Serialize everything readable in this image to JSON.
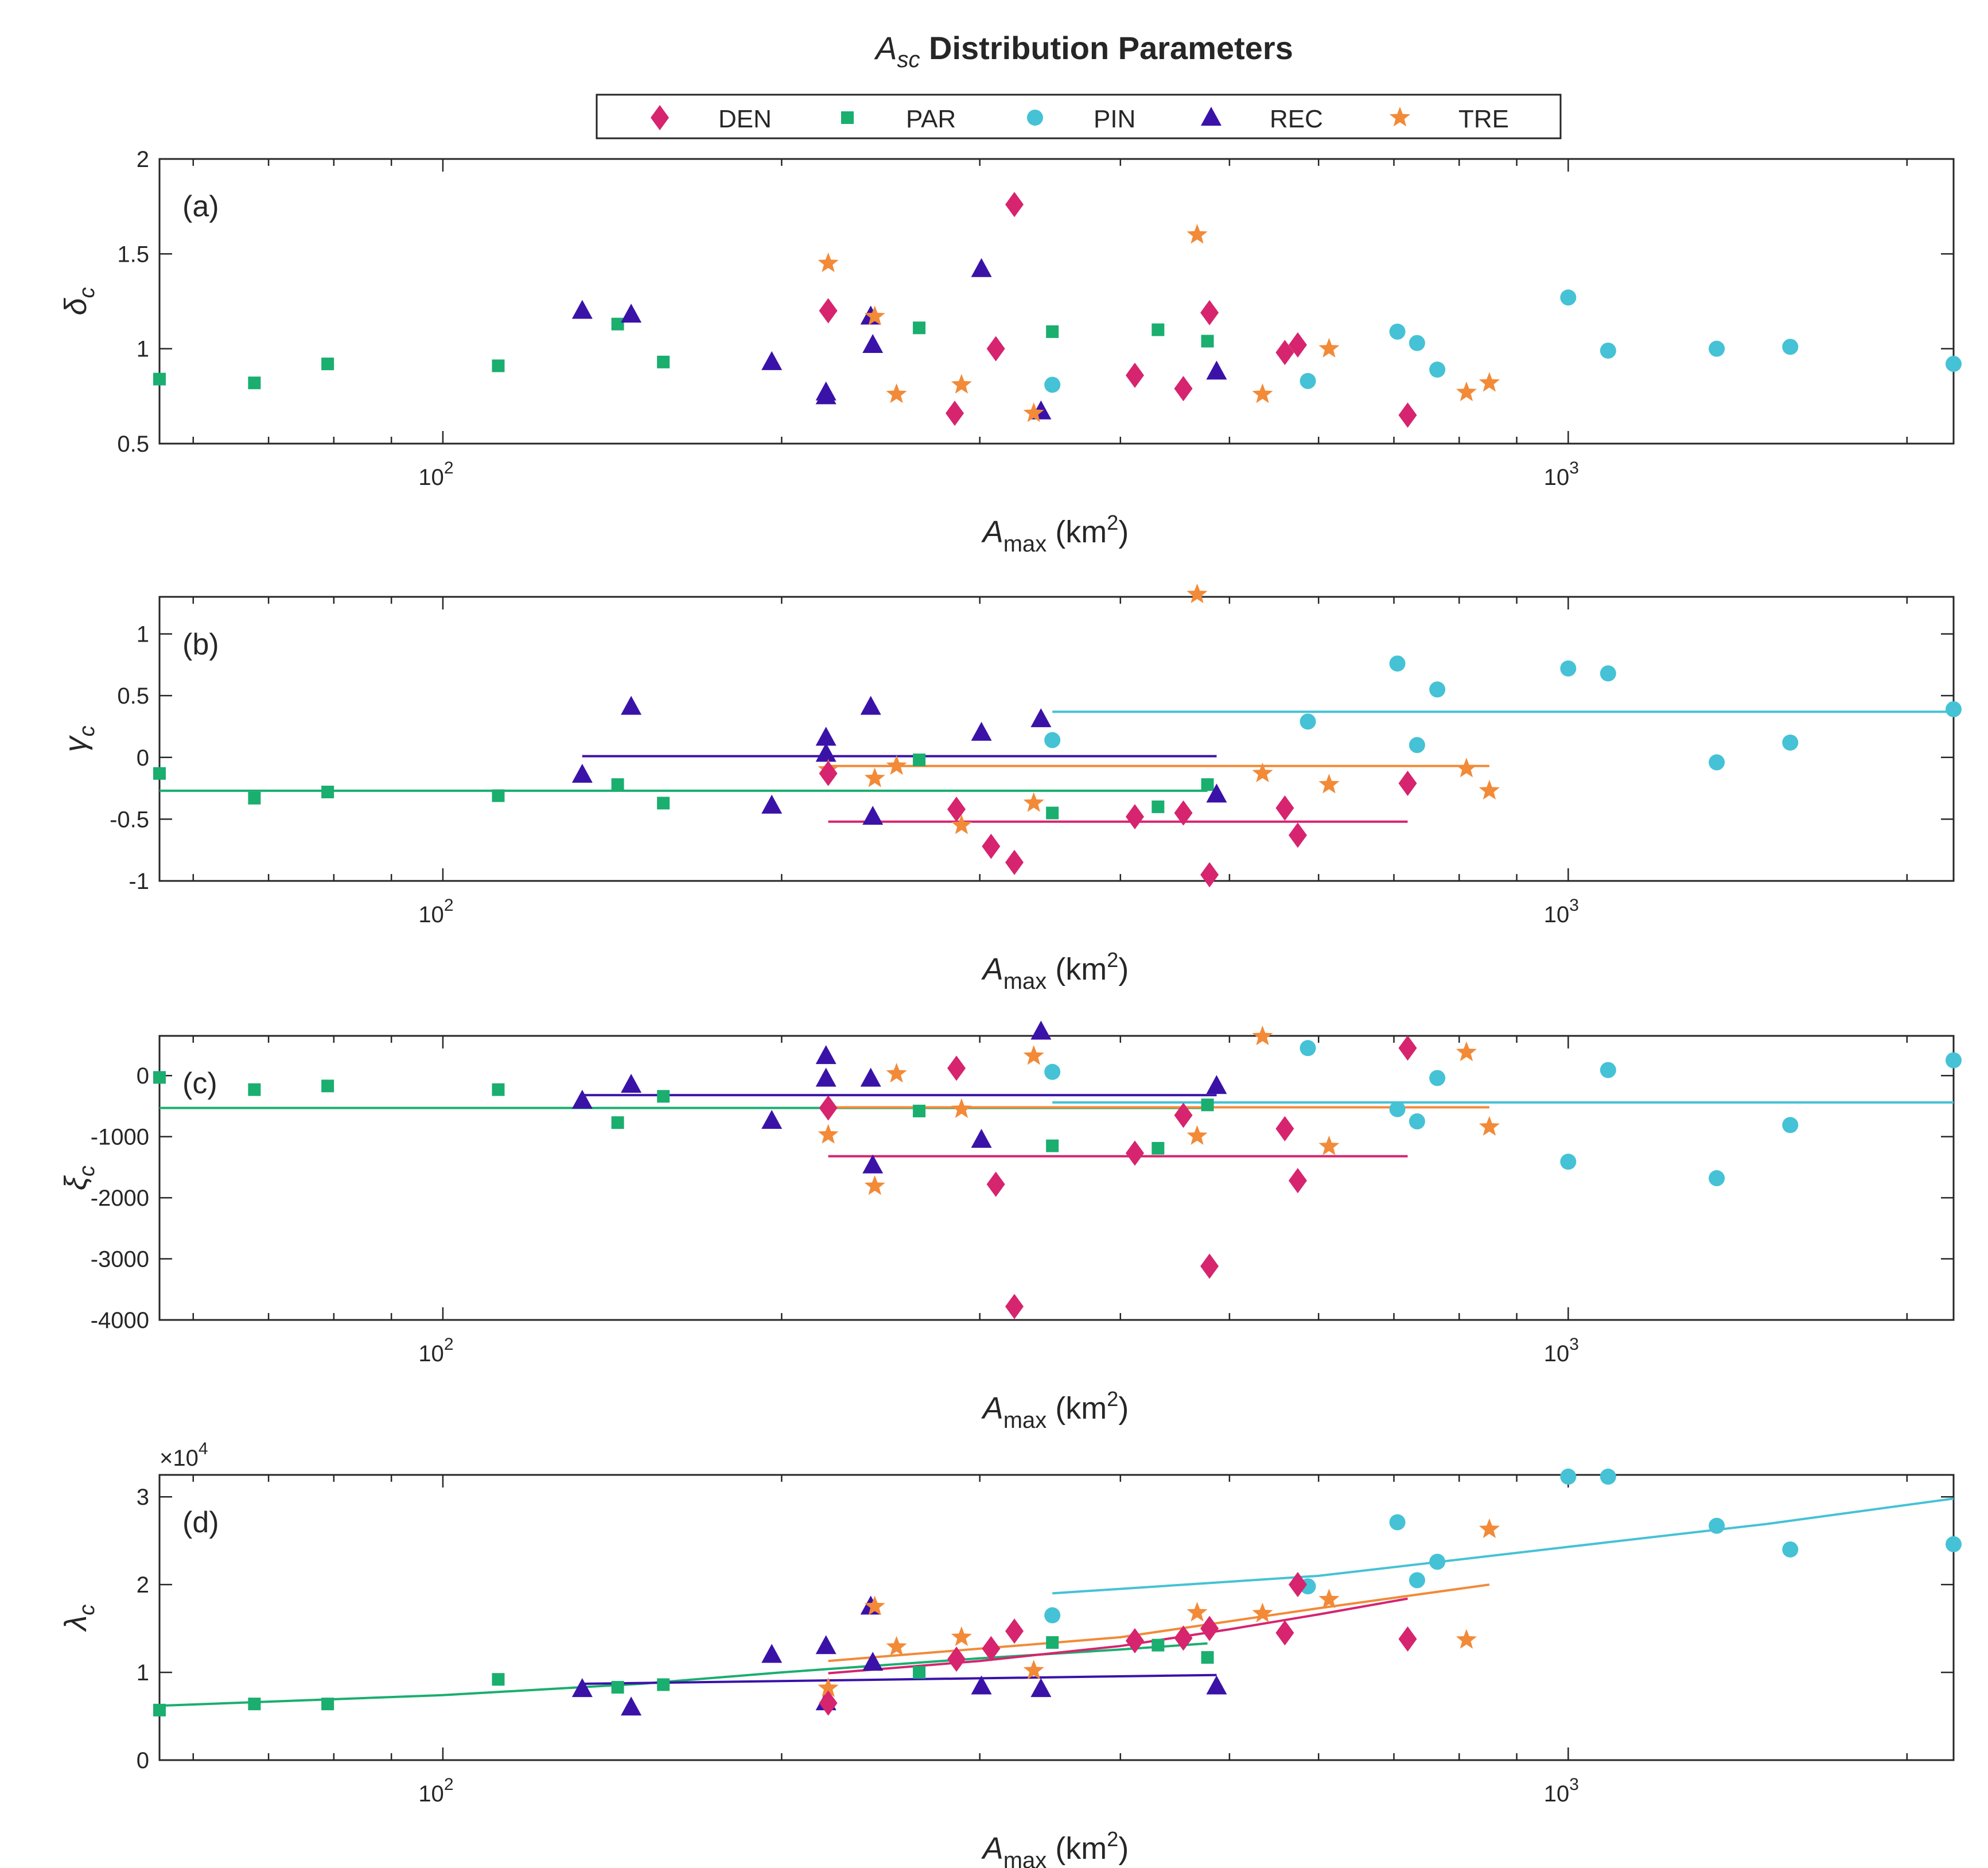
{
  "figure": {
    "title_base": "A",
    "title_sub": "sc",
    "title_rest": " Distribution Parameters",
    "x_label": {
      "base": "A",
      "sub": "max",
      "unit_pre": " (km",
      "unit_sup": "2",
      "unit_post": ")"
    },
    "x_tick_base": "10",
    "x_tick_exponents": [
      "2",
      "3"
    ],
    "x_tick_values": [
      100,
      1000
    ],
    "xlim": [
      56,
      2200
    ]
  },
  "legend": [
    {
      "key": "DEN",
      "label": "DEN",
      "marker": "diamond",
      "color": "#D6246F"
    },
    {
      "key": "PAR",
      "label": "PAR",
      "marker": "square",
      "color": "#1AAE6F"
    },
    {
      "key": "PIN",
      "label": "PIN",
      "marker": "circle",
      "color": "#45C2D5"
    },
    {
      "key": "REC",
      "label": "REC",
      "marker": "triangle",
      "color": "#3A12A8"
    },
    {
      "key": "TRE",
      "label": "TRE",
      "marker": "star",
      "color": "#F28A38"
    }
  ],
  "chart_data": [
    {
      "id": "a",
      "type": "scatter",
      "panel_label": "(a)",
      "ylabel": {
        "symbol": "δ",
        "sub": "c"
      },
      "ylim": [
        0.5,
        2
      ],
      "yticks": [
        0.5,
        1,
        1.5,
        2
      ],
      "ytick_labels": [
        "0.5",
        "1",
        "1.5",
        "2"
      ],
      "scale_note": "",
      "series": {
        "DEN": [
          [
            220,
            1.2
          ],
          [
            310,
            1.0
          ],
          [
            322,
            1.76
          ],
          [
            285,
            0.66
          ],
          [
            412,
            0.86
          ],
          [
            455,
            0.79
          ],
          [
            480,
            1.19
          ],
          [
            560,
            0.98
          ],
          [
            575,
            1.02
          ],
          [
            720,
            0.65
          ]
        ],
        "PAR": [
          [
            56,
            0.84
          ],
          [
            68,
            0.82
          ],
          [
            79,
            0.92
          ],
          [
            112,
            0.91
          ],
          [
            143,
            1.13
          ],
          [
            157,
            0.93
          ],
          [
            265,
            1.11
          ],
          [
            348,
            1.09
          ],
          [
            432,
            1.1
          ],
          [
            478,
            1.04
          ]
        ],
        "PIN": [
          [
            348,
            0.81
          ],
          [
            587,
            0.83
          ],
          [
            705,
            1.09
          ],
          [
            734,
            1.03
          ],
          [
            765,
            0.89
          ],
          [
            1000,
            1.27
          ],
          [
            1085,
            0.99
          ],
          [
            1355,
            1.0
          ],
          [
            1575,
            1.01
          ],
          [
            2200,
            0.92
          ]
        ],
        "REC": [
          [
            133,
            1.2
          ],
          [
            147,
            1.18
          ],
          [
            196,
            0.93
          ],
          [
            219,
            0.75
          ],
          [
            219,
            0.77
          ],
          [
            240,
            1.17
          ],
          [
            241,
            1.02
          ],
          [
            301,
            1.42
          ],
          [
            340,
            0.67
          ],
          [
            487,
            0.88
          ]
        ],
        "TRE": [
          [
            220,
            1.45
          ],
          [
            242,
            1.17
          ],
          [
            253,
            0.76
          ],
          [
            289,
            0.81
          ],
          [
            335,
            0.66
          ],
          [
            468,
            1.6
          ],
          [
            535,
            0.76
          ],
          [
            613,
            1.0
          ],
          [
            812,
            0.77
          ],
          [
            851,
            0.82
          ]
        ]
      },
      "fits": {}
    },
    {
      "id": "b",
      "type": "scatter",
      "panel_label": "(b)",
      "ylabel": {
        "symbol": "γ",
        "sub": "c"
      },
      "ylim": [
        -1,
        1.3
      ],
      "yticks": [
        -1,
        -0.5,
        0,
        0.5,
        1
      ],
      "ytick_labels": [
        "-1",
        "-0.5",
        "0",
        "0.5",
        "1"
      ],
      "scale_note": "",
      "series": {
        "DEN": [
          [
            220,
            -0.13
          ],
          [
            286,
            -0.42
          ],
          [
            307,
            -0.72
          ],
          [
            322,
            -0.85
          ],
          [
            412,
            -0.48
          ],
          [
            455,
            -0.45
          ],
          [
            480,
            -0.95
          ],
          [
            560,
            -0.41
          ],
          [
            575,
            -0.63
          ],
          [
            720,
            -0.21
          ]
        ],
        "PAR": [
          [
            56,
            -0.13
          ],
          [
            68,
            -0.33
          ],
          [
            79,
            -0.28
          ],
          [
            112,
            -0.31
          ],
          [
            143,
            -0.22
          ],
          [
            157,
            -0.37
          ],
          [
            265,
            -0.02
          ],
          [
            348,
            -0.45
          ],
          [
            432,
            -0.4
          ],
          [
            478,
            -0.22
          ]
        ],
        "PIN": [
          [
            348,
            0.14
          ],
          [
            587,
            0.29
          ],
          [
            705,
            0.76
          ],
          [
            734,
            0.1
          ],
          [
            765,
            0.55
          ],
          [
            1000,
            0.72
          ],
          [
            1085,
            0.68
          ],
          [
            1355,
            -0.04
          ],
          [
            1575,
            0.12
          ],
          [
            2200,
            0.39
          ]
        ],
        "REC": [
          [
            133,
            -0.14
          ],
          [
            147,
            0.41
          ],
          [
            196,
            -0.39
          ],
          [
            219,
            0.16
          ],
          [
            219,
            0.03
          ],
          [
            240,
            0.41
          ],
          [
            241,
            -0.48
          ],
          [
            301,
            0.2
          ],
          [
            340,
            0.31
          ],
          [
            487,
            -0.3
          ]
        ],
        "TRE": [
          [
            220,
            -0.1
          ],
          [
            242,
            -0.17
          ],
          [
            253,
            -0.07
          ],
          [
            289,
            -0.55
          ],
          [
            335,
            -0.37
          ],
          [
            468,
            1.32
          ],
          [
            535,
            -0.13
          ],
          [
            613,
            -0.22
          ],
          [
            812,
            -0.09
          ],
          [
            851,
            -0.27
          ]
        ]
      },
      "fits": {
        "PAR": [
          [
            56,
            -0.27
          ],
          [
            478,
            -0.27
          ]
        ],
        "REC": [
          [
            133,
            0.01
          ],
          [
            487,
            0.01
          ]
        ],
        "TRE": [
          [
            220,
            -0.07
          ],
          [
            851,
            -0.07
          ]
        ],
        "DEN": [
          [
            220,
            -0.52
          ],
          [
            720,
            -0.52
          ]
        ],
        "PIN": [
          [
            348,
            0.37
          ],
          [
            2200,
            0.37
          ]
        ]
      }
    },
    {
      "id": "c",
      "type": "scatter",
      "panel_label": "(c)",
      "ylabel": {
        "symbol": "ξ",
        "sub": "c"
      },
      "ylim": [
        -4000,
        650
      ],
      "yticks": [
        -4000,
        -3000,
        -2000,
        -1000,
        0
      ],
      "ytick_labels": [
        "-4000",
        "-3000",
        "-2000",
        "-1000",
        "0"
      ],
      "scale_note": "",
      "series": {
        "DEN": [
          [
            220,
            -530
          ],
          [
            286,
            120
          ],
          [
            310,
            -1780
          ],
          [
            322,
            -3780
          ],
          [
            412,
            -1270
          ],
          [
            455,
            -650
          ],
          [
            480,
            -3120
          ],
          [
            560,
            -870
          ],
          [
            575,
            -1720
          ],
          [
            720,
            450
          ]
        ],
        "PAR": [
          [
            56,
            -30
          ],
          [
            68,
            -230
          ],
          [
            79,
            -170
          ],
          [
            112,
            -230
          ],
          [
            143,
            -770
          ],
          [
            157,
            -340
          ],
          [
            265,
            -580
          ],
          [
            348,
            -1150
          ],
          [
            432,
            -1190
          ],
          [
            478,
            -480
          ]
        ],
        "PIN": [
          [
            348,
            60
          ],
          [
            587,
            450
          ],
          [
            705,
            -550
          ],
          [
            734,
            -750
          ],
          [
            765,
            -40
          ],
          [
            1000,
            -1410
          ],
          [
            1085,
            90
          ],
          [
            1355,
            -1680
          ],
          [
            1575,
            -810
          ],
          [
            2200,
            250
          ]
        ],
        "REC": [
          [
            133,
            -410
          ],
          [
            147,
            -150
          ],
          [
            196,
            -740
          ],
          [
            219,
            320
          ],
          [
            219,
            -50
          ],
          [
            240,
            -50
          ],
          [
            241,
            -1470
          ],
          [
            301,
            -1050
          ],
          [
            340,
            720
          ],
          [
            487,
            -170
          ]
        ],
        "TRE": [
          [
            220,
            -970
          ],
          [
            242,
            -1810
          ],
          [
            253,
            30
          ],
          [
            289,
            -550
          ],
          [
            335,
            320
          ],
          [
            468,
            -990
          ],
          [
            535,
            640
          ],
          [
            613,
            -1160
          ],
          [
            812,
            380
          ],
          [
            851,
            -840
          ]
        ]
      },
      "fits": {
        "PAR": [
          [
            56,
            -530
          ],
          [
            478,
            -530
          ]
        ],
        "REC": [
          [
            133,
            -320
          ],
          [
            487,
            -320
          ]
        ],
        "TRE": [
          [
            220,
            -520
          ],
          [
            851,
            -520
          ]
        ],
        "DEN": [
          [
            220,
            -1320
          ],
          [
            720,
            -1320
          ]
        ],
        "PIN": [
          [
            348,
            -440
          ],
          [
            2200,
            -440
          ]
        ]
      }
    },
    {
      "id": "d",
      "type": "scatter",
      "panel_label": "(d)",
      "ylabel": {
        "symbol": "λ",
        "sub": "c"
      },
      "ylim": [
        0,
        32500
      ],
      "yticks": [
        0,
        10000,
        20000,
        30000
      ],
      "ytick_labels": [
        "0",
        "1",
        "2",
        "3"
      ],
      "scale_note": "×10",
      "scale_exp": "4",
      "series": {
        "DEN": [
          [
            220,
            6500
          ],
          [
            286,
            11500
          ],
          [
            307,
            12700
          ],
          [
            322,
            14700
          ],
          [
            412,
            13600
          ],
          [
            455,
            13900
          ],
          [
            480,
            15000
          ],
          [
            560,
            14500
          ],
          [
            575,
            20000
          ],
          [
            720,
            13800
          ]
        ],
        "PAR": [
          [
            56,
            5700
          ],
          [
            68,
            6400
          ],
          [
            79,
            6400
          ],
          [
            112,
            9200
          ],
          [
            143,
            8300
          ],
          [
            157,
            8600
          ],
          [
            265,
            10000
          ],
          [
            348,
            13400
          ],
          [
            432,
            13100
          ],
          [
            478,
            11700
          ]
        ],
        "PIN": [
          [
            348,
            16500
          ],
          [
            587,
            19800
          ],
          [
            705,
            27100
          ],
          [
            734,
            20500
          ],
          [
            765,
            22600
          ],
          [
            1000,
            32300
          ],
          [
            1085,
            32300
          ],
          [
            1355,
            26700
          ],
          [
            1575,
            24000
          ],
          [
            2200,
            24600
          ]
        ],
        "REC": [
          [
            133,
            8100
          ],
          [
            147,
            6000
          ],
          [
            196,
            12000
          ],
          [
            219,
            13000
          ],
          [
            219,
            6600
          ],
          [
            240,
            17500
          ],
          [
            241,
            11100
          ],
          [
            301,
            8400
          ],
          [
            340,
            8100
          ],
          [
            487,
            8400
          ]
        ],
        "TRE": [
          [
            220,
            8200
          ],
          [
            242,
            17500
          ],
          [
            253,
            12900
          ],
          [
            289,
            14000
          ],
          [
            335,
            10200
          ],
          [
            468,
            16800
          ],
          [
            535,
            16700
          ],
          [
            613,
            18300
          ],
          [
            812,
            13700
          ],
          [
            851,
            26300
          ]
        ]
      },
      "fits": {
        "PAR": [
          [
            56,
            6200
          ],
          [
            100,
            7400
          ],
          [
            150,
            8700
          ],
          [
            200,
            10000
          ],
          [
            300,
            11600
          ],
          [
            400,
            12600
          ],
          [
            478,
            13300
          ]
        ],
        "REC": [
          [
            133,
            8700
          ],
          [
            487,
            9700
          ]
        ],
        "TRE": [
          [
            220,
            11300
          ],
          [
            400,
            14000
          ],
          [
            600,
            17300
          ],
          [
            851,
            20000
          ]
        ],
        "DEN": [
          [
            220,
            9900
          ],
          [
            300,
            11300
          ],
          [
            400,
            13000
          ],
          [
            500,
            14900
          ],
          [
            600,
            16600
          ],
          [
            720,
            18400
          ]
        ],
        "PIN": [
          [
            348,
            19000
          ],
          [
            600,
            21000
          ],
          [
            1000,
            24300
          ],
          [
            1500,
            26900
          ],
          [
            2200,
            29800
          ]
        ]
      }
    }
  ]
}
